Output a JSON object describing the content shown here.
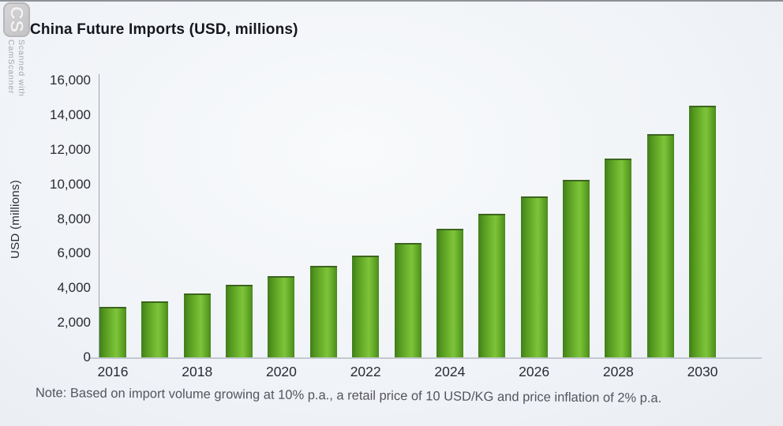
{
  "watermark": {
    "logo_text": "CS",
    "line1": "Scanned with",
    "line2": "CamScanner"
  },
  "chart_data": {
    "type": "bar",
    "title": "China Future Imports (USD, millions)",
    "xlabel": "",
    "ylabel": "USD (millions)",
    "categories": [
      "2016",
      "2017",
      "2018",
      "2019",
      "2020",
      "2021",
      "2022",
      "2023",
      "2024",
      "2025",
      "2026",
      "2027",
      "2028",
      "2029",
      "2030"
    ],
    "values": [
      2900,
      3250,
      3700,
      4200,
      4700,
      5300,
      5900,
      6600,
      7450,
      8300,
      9300,
      10250,
      11500,
      12900,
      14550
    ],
    "x_tick_labels": [
      "2016",
      "2018",
      "2020",
      "2022",
      "2024",
      "2026",
      "2028",
      "2030"
    ],
    "y_tick_labels": [
      "0",
      "2,000",
      "4,000",
      "6,000",
      "8,000",
      "10,000",
      "12,000",
      "14,000",
      "16,000"
    ],
    "ylim": [
      0,
      16000
    ],
    "grid": false,
    "legend": false,
    "colors": {
      "bar_cap": "#3c6420",
      "bar_gradient": [
        [
          "#3f7d1b",
          0
        ],
        [
          "#54981f",
          18
        ],
        [
          "#6db42d",
          45
        ],
        [
          "#7ec43a",
          63
        ],
        [
          "#61a727",
          84
        ],
        [
          "#4a8a1d",
          100
        ]
      ],
      "title_text": "#16161f",
      "axis_text": "#2b2b33",
      "note_text": "#55555d",
      "background": "#f0f3f7",
      "watermark_text": "#a4a6ac"
    },
    "note": "Note: Based on import volume growing at 10% p.a., a retail price of 10 USD/KG and price inflation of 2% p.a."
  }
}
